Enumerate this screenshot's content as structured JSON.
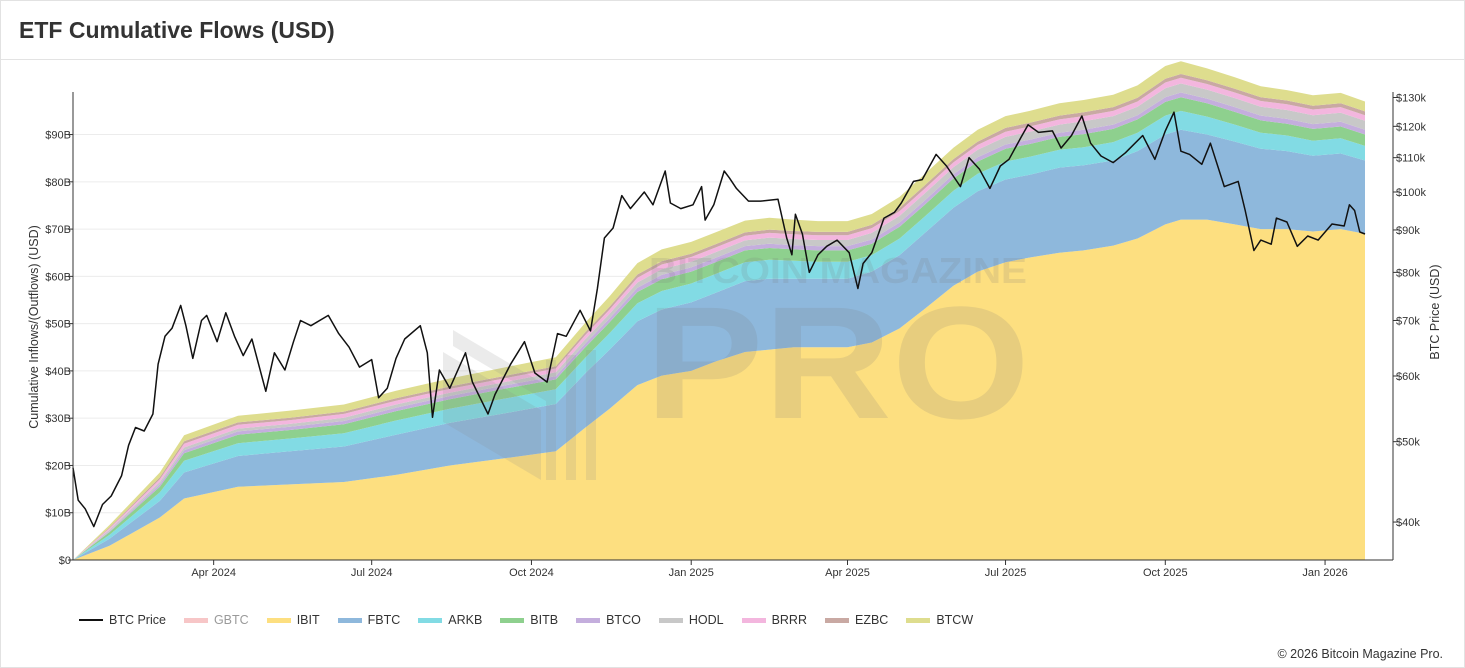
{
  "page": {
    "title": "ETF Cumulative Flows (USD)",
    "copyright": "© 2026 Bitcoin Magazine Pro."
  },
  "watermark": {
    "top_text": "BITCOIN MAGAZINE",
    "main_text": "PRO"
  },
  "chart_data": {
    "type": "area",
    "stacked": true,
    "x_range": [
      "2024-01-11",
      "2026-01-24"
    ],
    "x_ticks": [
      {
        "date": "2024-04-01",
        "label": "Apr 2024"
      },
      {
        "date": "2024-07-01",
        "label": "Jul 2024"
      },
      {
        "date": "2024-10-01",
        "label": "Oct 2024"
      },
      {
        "date": "2025-01-01",
        "label": "Jan 2025"
      },
      {
        "date": "2025-04-01",
        "label": "Apr 2025"
      },
      {
        "date": "2025-07-01",
        "label": "Jul 2025"
      },
      {
        "date": "2025-10-01",
        "label": "Oct 2025"
      },
      {
        "date": "2026-01-01",
        "label": "Jan 2026"
      }
    ],
    "y_left": {
      "label": "Cumulative Inflows/(Outflows) (USD)",
      "range": [
        0,
        99
      ],
      "unit": "billion USD",
      "ticks": [
        {
          "value": 0,
          "label": "$0"
        },
        {
          "value": 10,
          "label": "$10B"
        },
        {
          "value": 20,
          "label": "$20B"
        },
        {
          "value": 30,
          "label": "$30B"
        },
        {
          "value": 40,
          "label": "$40B"
        },
        {
          "value": 50,
          "label": "$50B"
        },
        {
          "value": 60,
          "label": "$60B"
        },
        {
          "value": 70,
          "label": "$70B"
        },
        {
          "value": 80,
          "label": "$80B"
        },
        {
          "value": 90,
          "label": "$90B"
        }
      ]
    },
    "y_right": {
      "label": "BTC Price (USD)",
      "scale": "log",
      "range": [
        36000,
        132000
      ],
      "ticks": [
        {
          "value": 40000,
          "label": "$40k"
        },
        {
          "value": 50000,
          "label": "$50k"
        },
        {
          "value": 60000,
          "label": "$60k"
        },
        {
          "value": 70000,
          "label": "$70k"
        },
        {
          "value": 80000,
          "label": "$80k"
        },
        {
          "value": 90000,
          "label": "$90k"
        },
        {
          "value": 100000,
          "label": "$100k"
        },
        {
          "value": 110000,
          "label": "$110k"
        },
        {
          "value": 120000,
          "label": "$120k"
        },
        {
          "value": 130000,
          "label": "$130k"
        }
      ]
    },
    "grid": true,
    "legend_position": "bottom-left",
    "dates": [
      "2024-01-11",
      "2024-02-01",
      "2024-03-01",
      "2024-03-15",
      "2024-04-15",
      "2024-05-15",
      "2024-06-15",
      "2024-07-15",
      "2024-08-15",
      "2024-09-15",
      "2024-10-15",
      "2024-11-01",
      "2024-11-15",
      "2024-12-01",
      "2024-12-15",
      "2025-01-01",
      "2025-01-15",
      "2025-02-01",
      "2025-02-15",
      "2025-03-01",
      "2025-03-15",
      "2025-04-01",
      "2025-04-15",
      "2025-05-01",
      "2025-05-15",
      "2025-06-01",
      "2025-06-15",
      "2025-07-01",
      "2025-07-15",
      "2025-08-01",
      "2025-08-15",
      "2025-09-01",
      "2025-09-15",
      "2025-10-01",
      "2025-10-10",
      "2025-10-25",
      "2025-11-10",
      "2025-11-25",
      "2025-12-10",
      "2025-12-25",
      "2026-01-10",
      "2026-01-24"
    ],
    "series": [
      {
        "name": "GBTC",
        "color": "#f7c6c7",
        "muted": true,
        "values": [
          0,
          0,
          0,
          0,
          0,
          0,
          0,
          0,
          0,
          0,
          0,
          0,
          0,
          0,
          0,
          0,
          0,
          0,
          0,
          0,
          0,
          0,
          0,
          0,
          0,
          0,
          0,
          0,
          0,
          0,
          0,
          0,
          0,
          0,
          0,
          0,
          0,
          0,
          0,
          0,
          0,
          0
        ]
      },
      {
        "name": "IBIT",
        "color": "#fddf80",
        "values": [
          0,
          3,
          9,
          13,
          15.5,
          16,
          16.5,
          18,
          20,
          21.5,
          23,
          28,
          32,
          37,
          39,
          40,
          42,
          44,
          44.5,
          45,
          45,
          45,
          46,
          49,
          53,
          58,
          61,
          63,
          64,
          65,
          65.5,
          66.5,
          68,
          71,
          72,
          72,
          71,
          70,
          70,
          69.5,
          70,
          69
        ]
      },
      {
        "name": "FBTC",
        "color": "#8eb8dc",
        "values": [
          0,
          1.5,
          3.5,
          5.5,
          6.5,
          7,
          7.5,
          8.5,
          9,
          9.5,
          10,
          11.5,
          12.5,
          13.5,
          14,
          14.5,
          14.5,
          15,
          15,
          14.5,
          14.5,
          14.5,
          15,
          15.5,
          16,
          16.5,
          17,
          17.5,
          17.5,
          18,
          18,
          18,
          18.5,
          19,
          19,
          18,
          17.5,
          17,
          16.5,
          16,
          16,
          15.5
        ]
      },
      {
        "name": "ARKB",
        "color": "#82dbe4",
        "values": [
          0,
          0.8,
          1.8,
          2.5,
          2.7,
          2.7,
          2.8,
          3,
          3,
          3.1,
          3.1,
          3.3,
          3.5,
          3.8,
          3.9,
          4,
          4,
          4,
          4,
          3.8,
          3.6,
          3.6,
          3.5,
          3.5,
          3.5,
          3.6,
          3.7,
          3.8,
          3.8,
          3.8,
          3.8,
          3.9,
          3.9,
          4,
          4,
          3.8,
          3.6,
          3.4,
          3.3,
          3.2,
          3.2,
          3.1
        ]
      },
      {
        "name": "BITB",
        "color": "#8ed08e",
        "values": [
          0,
          0.6,
          1.2,
          1.6,
          1.8,
          1.8,
          1.9,
          2,
          2,
          2.1,
          2.1,
          2.2,
          2.3,
          2.4,
          2.5,
          2.5,
          2.5,
          2.5,
          2.5,
          2.4,
          2.4,
          2.4,
          2.4,
          2.5,
          2.5,
          2.6,
          2.6,
          2.7,
          2.7,
          2.7,
          2.8,
          2.8,
          2.8,
          2.9,
          2.9,
          2.8,
          2.7,
          2.6,
          2.5,
          2.5,
          2.5,
          2.4
        ]
      },
      {
        "name": "BTCO",
        "color": "#c4aedd",
        "values": [
          0,
          0.2,
          0.5,
          0.6,
          0.7,
          0.7,
          0.7,
          0.7,
          0.7,
          0.7,
          0.7,
          0.8,
          0.8,
          0.9,
          0.9,
          0.9,
          0.9,
          0.9,
          0.9,
          0.9,
          0.9,
          0.9,
          0.9,
          0.9,
          0.9,
          0.9,
          0.9,
          0.9,
          0.9,
          0.9,
          0.9,
          0.9,
          0.9,
          1,
          1,
          1,
          1,
          1,
          1,
          1,
          1,
          1
        ]
      },
      {
        "name": "HODL",
        "color": "#c8c8c8",
        "values": [
          0,
          0.3,
          0.5,
          0.6,
          0.6,
          0.6,
          0.7,
          0.7,
          0.7,
          0.7,
          0.8,
          0.9,
          1,
          1.1,
          1.2,
          1.2,
          1.2,
          1.2,
          1.3,
          1.3,
          1.3,
          1.3,
          1.4,
          1.4,
          1.5,
          1.5,
          1.6,
          1.6,
          1.7,
          1.7,
          1.8,
          1.8,
          1.8,
          1.9,
          1.9,
          1.9,
          1.9,
          1.9,
          1.9,
          1.9,
          1.9,
          1.9
        ]
      },
      {
        "name": "BRRR",
        "color": "#f3b6de",
        "values": [
          0,
          0.3,
          0.6,
          0.8,
          0.8,
          0.8,
          0.8,
          0.8,
          0.8,
          0.8,
          0.8,
          0.9,
          0.9,
          1,
          1,
          1,
          1,
          1,
          1,
          1,
          1,
          1,
          1,
          1,
          1,
          1,
          1,
          1.1,
          1.1,
          1.1,
          1.1,
          1.1,
          1.1,
          1.2,
          1.2,
          1.2,
          1.2,
          1.2,
          1.2,
          1.2,
          1.2,
          1.2
        ]
      },
      {
        "name": "EZBC",
        "color": "#c9a9a3",
        "values": [
          0,
          0.2,
          0.4,
          0.5,
          0.5,
          0.5,
          0.5,
          0.5,
          0.5,
          0.5,
          0.5,
          0.6,
          0.6,
          0.7,
          0.7,
          0.7,
          0.7,
          0.7,
          0.7,
          0.7,
          0.7,
          0.7,
          0.7,
          0.7,
          0.7,
          0.7,
          0.7,
          0.8,
          0.8,
          0.8,
          0.8,
          0.8,
          0.8,
          0.8,
          0.8,
          0.8,
          0.8,
          0.8,
          0.8,
          0.8,
          0.8,
          0.8
        ]
      },
      {
        "name": "BTCW",
        "color": "#dedd8e",
        "values": [
          0,
          0.5,
          1,
          1.3,
          1.4,
          1.5,
          1.5,
          1.6,
          1.7,
          1.8,
          1.9,
          2,
          2.2,
          2.4,
          2.5,
          2.5,
          2.5,
          2.5,
          2.5,
          2.4,
          2.3,
          2.3,
          2.3,
          2.3,
          2.4,
          2.4,
          2.5,
          2.5,
          2.5,
          2.6,
          2.6,
          2.6,
          2.6,
          2.7,
          2.7,
          2.5,
          2.4,
          2.3,
          2.2,
          2.2,
          2.2,
          2.1
        ]
      }
    ],
    "price_series": {
      "name": "BTC Price",
      "color": "#111111",
      "points": [
        [
          "2024-01-11",
          46500
        ],
        [
          "2024-01-14",
          42500
        ],
        [
          "2024-01-18",
          41500
        ],
        [
          "2024-01-23",
          39500
        ],
        [
          "2024-01-28",
          42000
        ],
        [
          "2024-02-02",
          43000
        ],
        [
          "2024-02-08",
          45500
        ],
        [
          "2024-02-12",
          49500
        ],
        [
          "2024-02-16",
          52000
        ],
        [
          "2024-02-21",
          51500
        ],
        [
          "2024-02-26",
          54000
        ],
        [
          "2024-02-29",
          62000
        ],
        [
          "2024-03-04",
          67000
        ],
        [
          "2024-03-08",
          68500
        ],
        [
          "2024-03-13",
          73000
        ],
        [
          "2024-03-16",
          69000
        ],
        [
          "2024-03-20",
          63000
        ],
        [
          "2024-03-25",
          70000
        ],
        [
          "2024-03-28",
          71000
        ],
        [
          "2024-04-03",
          66000
        ],
        [
          "2024-04-08",
          71500
        ],
        [
          "2024-04-13",
          67000
        ],
        [
          "2024-04-18",
          63500
        ],
        [
          "2024-04-23",
          66500
        ],
        [
          "2024-05-01",
          57500
        ],
        [
          "2024-05-06",
          64000
        ],
        [
          "2024-05-12",
          61000
        ],
        [
          "2024-05-17",
          66000
        ],
        [
          "2024-05-21",
          70000
        ],
        [
          "2024-05-27",
          69000
        ],
        [
          "2024-06-06",
          71000
        ],
        [
          "2024-06-12",
          67500
        ],
        [
          "2024-06-18",
          65000
        ],
        [
          "2024-06-24",
          61500
        ],
        [
          "2024-07-01",
          62800
        ],
        [
          "2024-07-05",
          56500
        ],
        [
          "2024-07-10",
          58000
        ],
        [
          "2024-07-15",
          63000
        ],
        [
          "2024-07-20",
          66500
        ],
        [
          "2024-07-29",
          69000
        ],
        [
          "2024-08-02",
          64000
        ],
        [
          "2024-08-05",
          53500
        ],
        [
          "2024-08-09",
          61000
        ],
        [
          "2024-08-15",
          58000
        ],
        [
          "2024-08-24",
          64000
        ],
        [
          "2024-08-28",
          59000
        ],
        [
          "2024-09-06",
          54000
        ],
        [
          "2024-09-10",
          57000
        ],
        [
          "2024-09-19",
          62000
        ],
        [
          "2024-09-27",
          66000
        ],
        [
          "2024-10-03",
          60500
        ],
        [
          "2024-10-10",
          59000
        ],
        [
          "2024-10-16",
          67500
        ],
        [
          "2024-10-21",
          67000
        ],
        [
          "2024-10-29",
          72000
        ],
        [
          "2024-11-04",
          68000
        ],
        [
          "2024-11-08",
          76500
        ],
        [
          "2024-11-12",
          88000
        ],
        [
          "2024-11-17",
          90500
        ],
        [
          "2024-11-22",
          99000
        ],
        [
          "2024-11-27",
          95500
        ],
        [
          "2024-12-05",
          100000
        ],
        [
          "2024-12-10",
          96500
        ],
        [
          "2024-12-17",
          106000
        ],
        [
          "2024-12-20",
          97000
        ],
        [
          "2024-12-26",
          95500
        ],
        [
          "2025-01-02",
          96500
        ],
        [
          "2025-01-07",
          101500
        ],
        [
          "2025-01-09",
          92500
        ],
        [
          "2025-01-14",
          96500
        ],
        [
          "2025-01-20",
          106000
        ],
        [
          "2025-01-23",
          104000
        ],
        [
          "2025-01-27",
          101000
        ],
        [
          "2025-02-03",
          97500
        ],
        [
          "2025-02-10",
          97500
        ],
        [
          "2025-02-20",
          98000
        ],
        [
          "2025-02-25",
          88000
        ],
        [
          "2025-02-28",
          84000
        ],
        [
          "2025-03-02",
          94000
        ],
        [
          "2025-03-06",
          89000
        ],
        [
          "2025-03-10",
          80000
        ],
        [
          "2025-03-15",
          84000
        ],
        [
          "2025-03-20",
          86000
        ],
        [
          "2025-03-26",
          87500
        ],
        [
          "2025-04-02",
          84500
        ],
        [
          "2025-04-07",
          76500
        ],
        [
          "2025-04-10",
          82000
        ],
        [
          "2025-04-15",
          84500
        ],
        [
          "2025-04-22",
          93000
        ],
        [
          "2025-04-28",
          94500
        ],
        [
          "2025-05-02",
          97000
        ],
        [
          "2025-05-09",
          103000
        ],
        [
          "2025-05-14",
          103500
        ],
        [
          "2025-05-22",
          111000
        ],
        [
          "2025-05-28",
          107500
        ],
        [
          "2025-06-05",
          101500
        ],
        [
          "2025-06-10",
          110000
        ],
        [
          "2025-06-16",
          106500
        ],
        [
          "2025-06-22",
          101000
        ],
        [
          "2025-06-28",
          107500
        ],
        [
          "2025-07-03",
          109500
        ],
        [
          "2025-07-10",
          116500
        ],
        [
          "2025-07-14",
          120500
        ],
        [
          "2025-07-20",
          118000
        ],
        [
          "2025-07-28",
          118500
        ],
        [
          "2025-08-02",
          113000
        ],
        [
          "2025-08-08",
          117000
        ],
        [
          "2025-08-14",
          123500
        ],
        [
          "2025-08-19",
          114500
        ],
        [
          "2025-08-25",
          110500
        ],
        [
          "2025-09-01",
          108500
        ],
        [
          "2025-09-08",
          111500
        ],
        [
          "2025-09-18",
          117000
        ],
        [
          "2025-09-25",
          109500
        ],
        [
          "2025-10-01",
          118500
        ],
        [
          "2025-10-06",
          124800
        ],
        [
          "2025-10-10",
          112000
        ],
        [
          "2025-10-15",
          111000
        ],
        [
          "2025-10-22",
          108000
        ],
        [
          "2025-10-27",
          114500
        ],
        [
          "2025-11-04",
          101500
        ],
        [
          "2025-11-12",
          103000
        ],
        [
          "2025-11-16",
          95000
        ],
        [
          "2025-11-21",
          85000
        ],
        [
          "2025-11-25",
          87500
        ],
        [
          "2025-12-01",
          86500
        ],
        [
          "2025-12-04",
          93000
        ],
        [
          "2025-12-10",
          92000
        ],
        [
          "2025-12-16",
          86000
        ],
        [
          "2025-12-22",
          88500
        ],
        [
          "2025-12-28",
          87500
        ],
        [
          "2026-01-05",
          91500
        ],
        [
          "2026-01-12",
          91000
        ],
        [
          "2026-01-15",
          96500
        ],
        [
          "2026-01-18",
          95000
        ],
        [
          "2026-01-21",
          89500
        ],
        [
          "2026-01-24",
          89000
        ]
      ]
    }
  }
}
